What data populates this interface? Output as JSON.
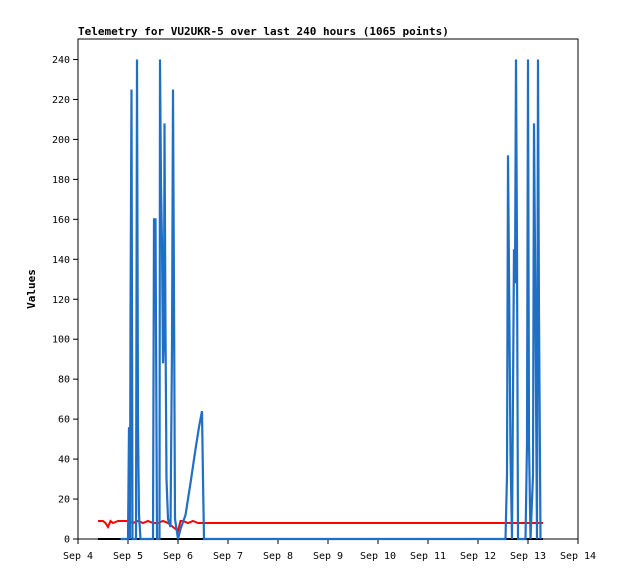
{
  "chart_data": {
    "type": "line",
    "title": "Telemetry for VU2UKR-5 over last 240 hours (1065 points)",
    "xlabel": "",
    "ylabel": "Values",
    "xlim": [
      4.0,
      14.0
    ],
    "ylim": [
      0,
      255
    ],
    "x_ticks": [
      {
        "value": 4,
        "label": "Sep 4"
      },
      {
        "value": 5,
        "label": "Sep 5"
      },
      {
        "value": 6,
        "label": "Sep 6"
      },
      {
        "value": 7,
        "label": "Sep 7"
      },
      {
        "value": 8,
        "label": "Sep 8"
      },
      {
        "value": 9,
        "label": "Sep 9"
      },
      {
        "value": 10,
        "label": "Sep 10"
      },
      {
        "value": 11,
        "label": "Sep 11"
      },
      {
        "value": 12,
        "label": "Sep 12"
      },
      {
        "value": 13,
        "label": "Sep 13"
      },
      {
        "value": 14,
        "label": "Sep 14"
      }
    ],
    "y_ticks": [
      0,
      20,
      40,
      60,
      80,
      100,
      120,
      140,
      160,
      180,
      200,
      220,
      240
    ],
    "grid": false,
    "legend": "none",
    "series": [
      {
        "color": "#ff0000",
        "style": "line",
        "points": [
          [
            4.4,
            9
          ],
          [
            4.5,
            9
          ],
          [
            4.55,
            8
          ],
          [
            4.6,
            6
          ],
          [
            4.65,
            9
          ],
          [
            4.7,
            8
          ],
          [
            4.8,
            9
          ],
          [
            4.9,
            9
          ],
          [
            5.0,
            9
          ],
          [
            5.1,
            8
          ],
          [
            5.2,
            9
          ],
          [
            5.3,
            8
          ],
          [
            5.4,
            9
          ],
          [
            5.5,
            8
          ],
          [
            5.6,
            8
          ],
          [
            5.7,
            9
          ],
          [
            5.8,
            8
          ],
          [
            5.9,
            6
          ],
          [
            6.0,
            4
          ],
          [
            6.05,
            9
          ],
          [
            6.1,
            9
          ],
          [
            6.2,
            8
          ],
          [
            6.3,
            9
          ],
          [
            6.4,
            8
          ],
          [
            6.5,
            8
          ],
          [
            7.0,
            8
          ],
          [
            8.0,
            8
          ],
          [
            9.0,
            8
          ],
          [
            10.0,
            8
          ],
          [
            11.0,
            8
          ],
          [
            12.0,
            8
          ],
          [
            12.5,
            8
          ],
          [
            12.6,
            8
          ],
          [
            12.7,
            8
          ],
          [
            12.8,
            8
          ],
          [
            12.9,
            8
          ],
          [
            13.0,
            8
          ],
          [
            13.1,
            8
          ],
          [
            13.2,
            8
          ],
          [
            13.3,
            8
          ]
        ]
      },
      {
        "color": "#000000",
        "style": "line",
        "points": [
          [
            4.4,
            0
          ],
          [
            13.3,
            0
          ]
        ]
      },
      {
        "color": "#1f6fc5",
        "style": "spikes",
        "points": [
          [
            4.85,
            0
          ],
          [
            5.0,
            0
          ],
          [
            5.02,
            56
          ],
          [
            5.04,
            0
          ],
          [
            5.05,
            112
          ],
          [
            5.07,
            225
          ],
          [
            5.09,
            0
          ],
          [
            5.16,
            0
          ],
          [
            5.18,
            240
          ],
          [
            5.2,
            56
          ],
          [
            5.22,
            12
          ],
          [
            5.25,
            0
          ],
          [
            5.5,
            0
          ],
          [
            5.52,
            160
          ],
          [
            5.55,
            160
          ],
          [
            5.58,
            0
          ],
          [
            5.63,
            0
          ],
          [
            5.64,
            240
          ],
          [
            5.66,
            177
          ],
          [
            5.68,
            147
          ],
          [
            5.7,
            88
          ],
          [
            5.72,
            104
          ],
          [
            5.73,
            208
          ],
          [
            5.75,
            104
          ],
          [
            5.77,
            30
          ],
          [
            5.8,
            10
          ],
          [
            5.85,
            6
          ],
          [
            5.88,
            97
          ],
          [
            5.9,
            225
          ],
          [
            5.92,
            120
          ],
          [
            5.94,
            10
          ],
          [
            6.0,
            0
          ],
          [
            6.05,
            5
          ],
          [
            6.15,
            12
          ],
          [
            6.25,
            28
          ],
          [
            6.35,
            45
          ],
          [
            6.42,
            56
          ],
          [
            6.48,
            64
          ],
          [
            6.5,
            30
          ],
          [
            6.52,
            0
          ],
          [
            12.55,
            0
          ],
          [
            12.58,
            32
          ],
          [
            12.6,
            192
          ],
          [
            12.62,
            133
          ],
          [
            12.65,
            43
          ],
          [
            12.68,
            0
          ],
          [
            12.72,
            145
          ],
          [
            12.74,
            128
          ],
          [
            12.76,
            240
          ],
          [
            12.78,
            144
          ],
          [
            12.8,
            0
          ],
          [
            12.95,
            0
          ],
          [
            12.98,
            48
          ],
          [
            13.0,
            240
          ],
          [
            13.02,
            48
          ],
          [
            13.05,
            0
          ],
          [
            13.1,
            32
          ],
          [
            13.12,
            208
          ],
          [
            13.15,
            112
          ],
          [
            13.18,
            0
          ],
          [
            13.2,
            240
          ],
          [
            13.22,
            112
          ],
          [
            13.25,
            0
          ]
        ]
      }
    ]
  }
}
